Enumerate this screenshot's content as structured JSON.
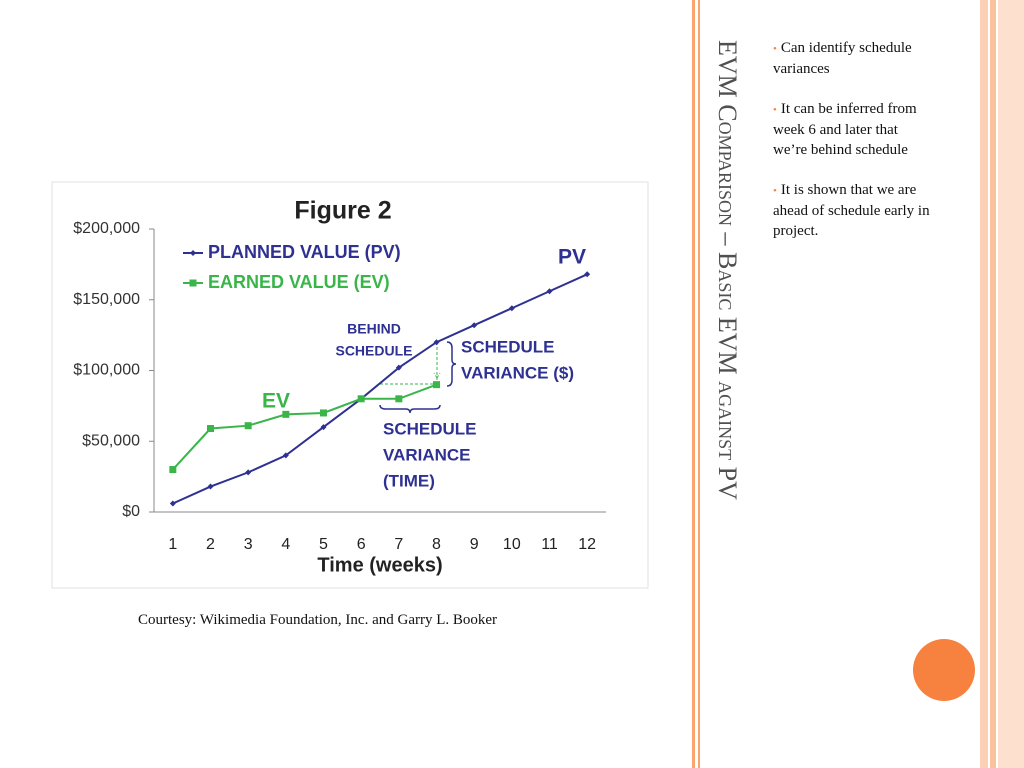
{
  "slide": {
    "title": "EVM Comparison – Basic EVM against PV",
    "bullets": [
      "Can identify schedule variances",
      "It can be inferred from week 6 and later that we’re behind schedule",
      "It is shown that we are ahead of schedule early in project."
    ],
    "caption": "Courtesy: Wikimedia Foundation, Inc. and Garry L. Booker"
  },
  "chart_data": {
    "type": "line",
    "title": "Figure 2",
    "x_label": "Time (weeks)",
    "categories": [
      "1",
      "2",
      "3",
      "4",
      "5",
      "6",
      "7",
      "8",
      "9",
      "10",
      "11",
      "12"
    ],
    "series": [
      {
        "name": "PLANNED VALUE (PV)",
        "color": "#2e3192",
        "values": [
          6000,
          18000,
          28000,
          40000,
          60000,
          80000,
          102000,
          120000,
          132000,
          144000,
          156000,
          168000
        ]
      },
      {
        "name": "EARNED VALUE (EV)",
        "color": "#39b54a",
        "values": [
          30000,
          59000,
          61000,
          69000,
          70000,
          80000,
          80000,
          90000,
          null,
          null,
          null,
          null
        ]
      }
    ],
    "ylim": [
      0,
      200000
    ],
    "yticks": [
      {
        "value": 0,
        "label": "$0"
      },
      {
        "value": 50000,
        "label": "$50,000"
      },
      {
        "value": 100000,
        "label": "$100,000"
      },
      {
        "value": 150000,
        "label": "$150,000"
      },
      {
        "value": 200000,
        "label": "$200,000"
      }
    ],
    "grid": false,
    "legend": "upper left",
    "annotations": [
      {
        "lines": [
          "PV"
        ]
      },
      {
        "lines": [
          "EV"
        ]
      },
      {
        "lines": [
          "BEHIND",
          "SCHEDULE"
        ]
      },
      {
        "lines": [
          "SCHEDULE",
          "VARIANCE ($)"
        ]
      },
      {
        "lines": [
          "SCHEDULE",
          "VARIANCE",
          "(TIME)"
        ]
      }
    ]
  }
}
